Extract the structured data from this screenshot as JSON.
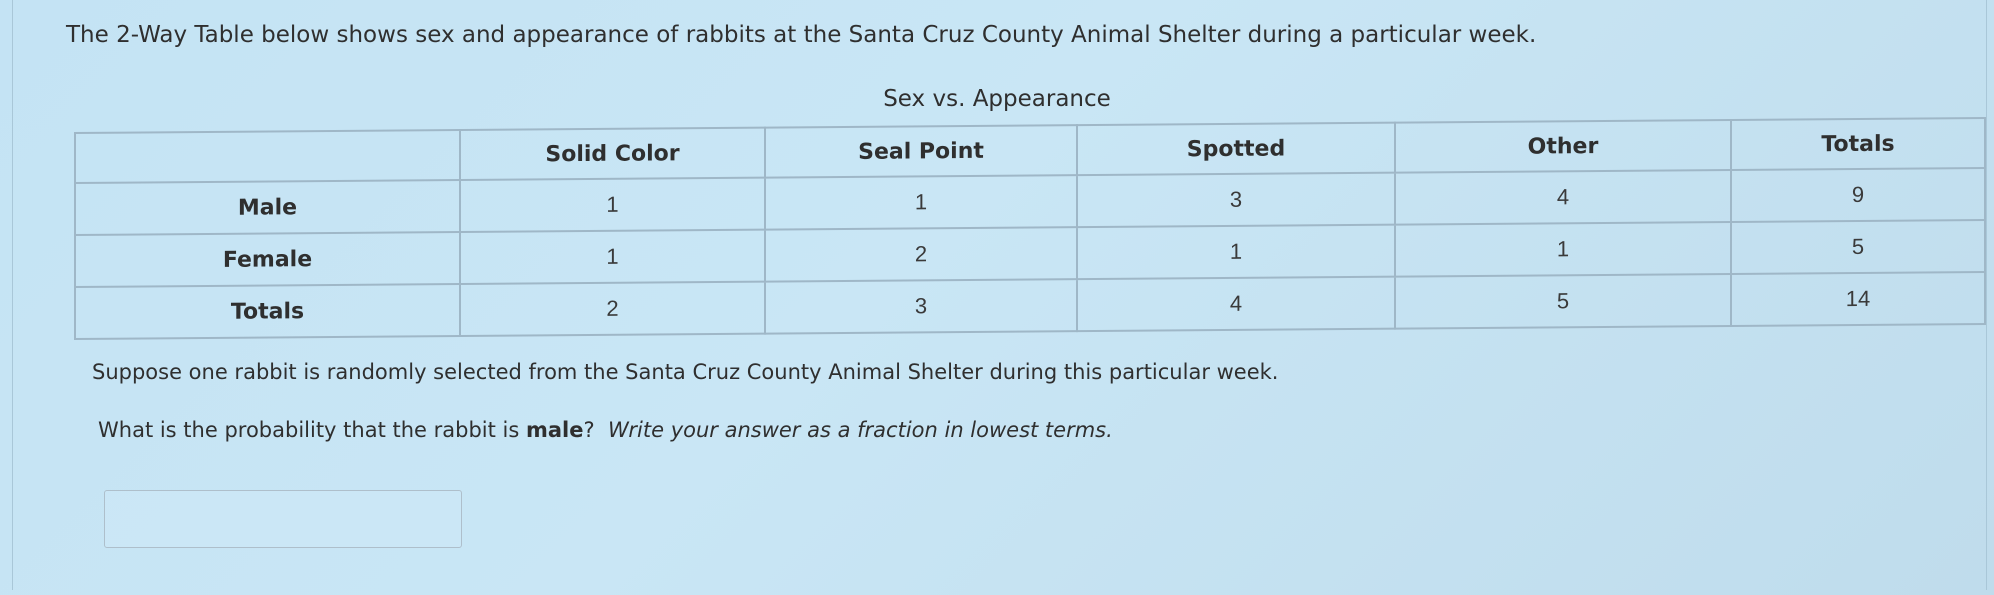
{
  "intro": "The 2-Way Table below shows sex and appearance of rabbits at the Santa Cruz County Animal Shelter during a particular week.",
  "table": {
    "title": "Sex vs. Appearance",
    "columns": [
      "",
      "Solid Color",
      "Seal Point",
      "Spotted",
      "Other",
      "Totals"
    ],
    "rows": [
      {
        "label": "Male",
        "cells": [
          "1",
          "1",
          "3",
          "4",
          "9"
        ]
      },
      {
        "label": "Female",
        "cells": [
          "1",
          "2",
          "1",
          "1",
          "5"
        ]
      },
      {
        "label": "Totals",
        "cells": [
          "2",
          "3",
          "4",
          "5",
          "14"
        ]
      }
    ]
  },
  "question": "Suppose one rabbit is randomly selected from the Santa Cruz County Animal Shelter during this particular week.",
  "prompt": {
    "prefix": "What is the probability that the rabbit is ",
    "emphasis": "male",
    "suffix": "?",
    "instruction": "Write your answer as a fraction in lowest terms."
  },
  "answer": {
    "value": "",
    "placeholder": ""
  }
}
